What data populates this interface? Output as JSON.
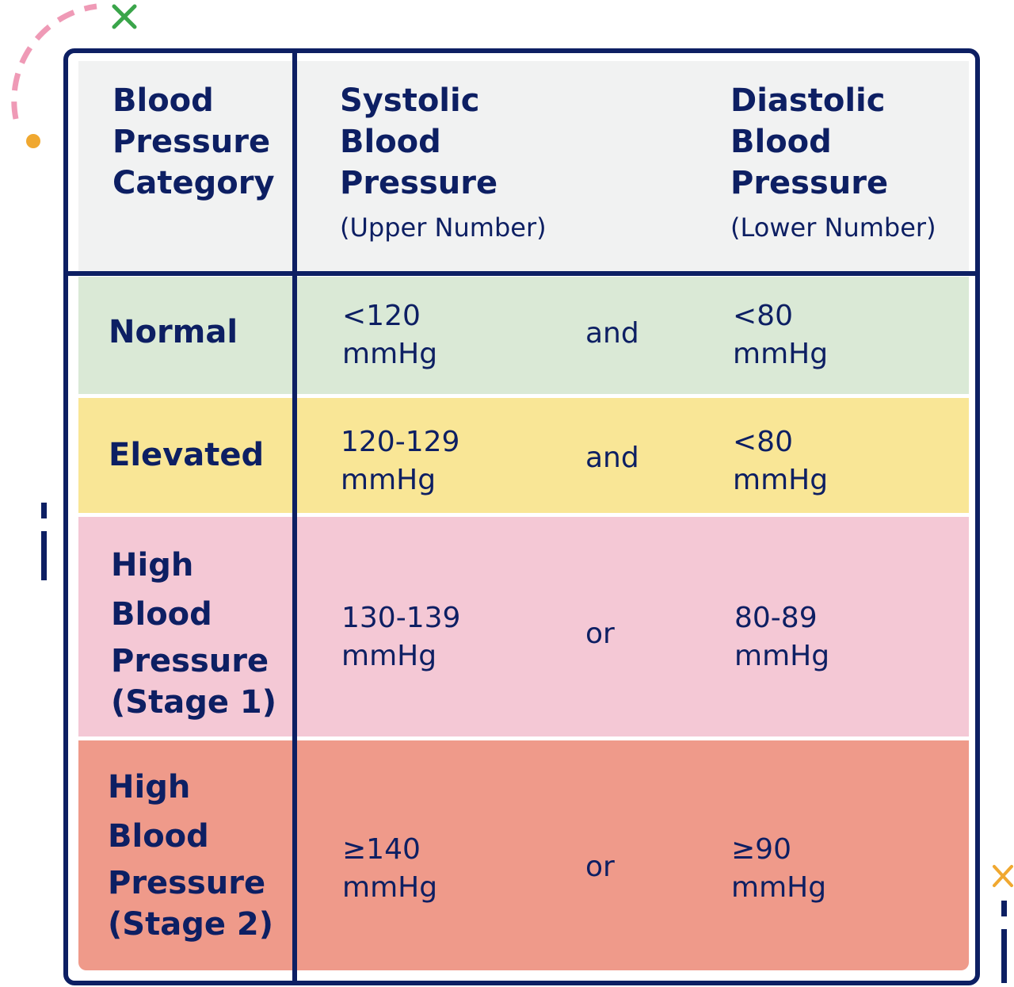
{
  "colors": {
    "border": "#0d1f63",
    "header_bg": "#f1f2f2",
    "normal_bg": "#dae9d6",
    "elevated_bg": "#f9e696",
    "stage1_bg": "#f4c8d5",
    "stage2_bg": "#ef9a8a"
  },
  "header": {
    "category": [
      "Blood",
      "Pressure",
      "Category"
    ],
    "systolic": {
      "title": [
        "Systolic",
        "Blood",
        "Pressure"
      ],
      "sub": "(Upper Number)"
    },
    "diastolic": {
      "title": [
        "Diastolic",
        "Blood",
        "Pressure"
      ],
      "sub": "(Lower Number)"
    }
  },
  "rows": [
    {
      "category": [
        "Normal"
      ],
      "systolic": [
        "<120",
        "mmHg"
      ],
      "conj": "and",
      "diastolic": [
        "<80",
        "mmHg"
      ]
    },
    {
      "category": [
        "Elevated"
      ],
      "systolic": [
        "120-129",
        "mmHg"
      ],
      "conj": "and",
      "diastolic": [
        "<80",
        "mmHg"
      ]
    },
    {
      "category": [
        "High",
        "Blood",
        "Pressure",
        "(Stage 1)"
      ],
      "systolic": [
        "130-139",
        "mmHg"
      ],
      "conj": "or",
      "diastolic": [
        "80-89",
        "mmHg"
      ]
    },
    {
      "category": [
        "High",
        "Blood",
        "Pressure",
        "(Stage 2)"
      ],
      "systolic": [
        "≥140",
        "mmHg"
      ],
      "conj": "or",
      "diastolic": [
        "≥90",
        "mmHg"
      ]
    }
  ],
  "decorations": [
    "dashed-arc-icon",
    "green-cross-icon",
    "orange-dot-icon",
    "orange-cross-icon"
  ]
}
